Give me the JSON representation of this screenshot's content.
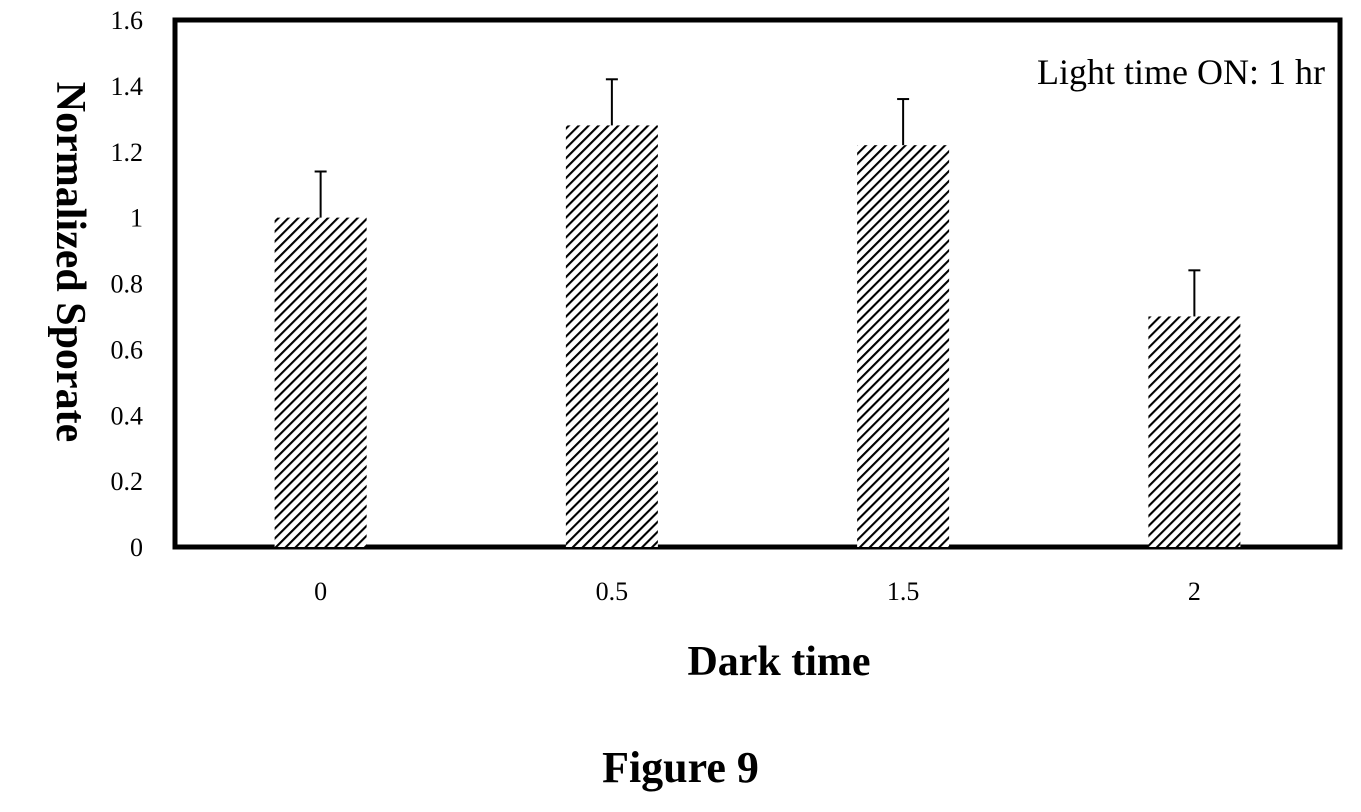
{
  "figure_caption": "Figure 9",
  "chart_data": {
    "type": "bar",
    "categories": [
      "0",
      "0.5",
      "1.5",
      "2"
    ],
    "values": [
      1.0,
      1.28,
      1.22,
      0.7
    ],
    "error_upper": [
      0.14,
      0.14,
      0.14,
      0.14
    ],
    "xlabel": "Dark time",
    "ylabel": "Normalized Sporate",
    "annotation": "Light  time  ON: 1 hr",
    "ylim": [
      0,
      1.6
    ],
    "yticks": [
      0,
      0.2,
      0.4,
      0.6,
      0.8,
      1,
      1.2,
      1.4,
      1.6
    ],
    "ytick_labels": [
      "0",
      "0.2",
      "0.4",
      "0.6",
      "0.8",
      "1",
      "1.2",
      "1.4",
      "1.6"
    ],
    "grid": false,
    "bar_fill": "hatched diagonal"
  }
}
